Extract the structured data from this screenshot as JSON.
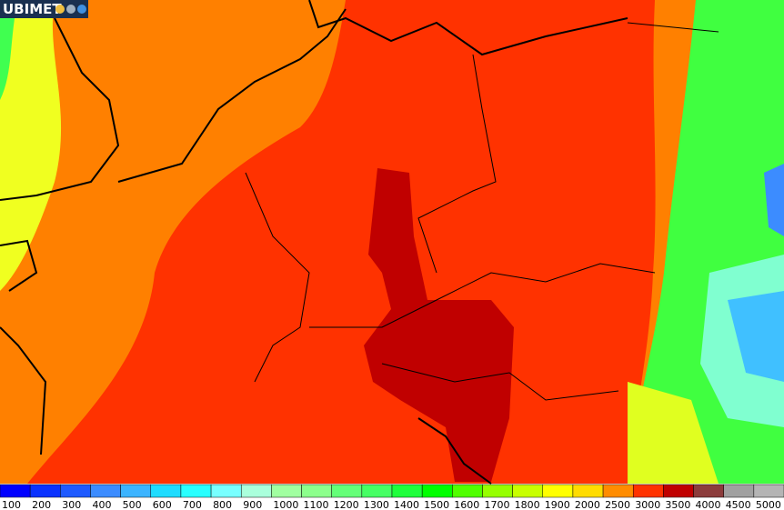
{
  "header": {
    "logo": "UBIMET"
  },
  "legend": {
    "labels": [
      "100",
      "200",
      "300",
      "400",
      "500",
      "600",
      "700",
      "800",
      "900",
      "1000",
      "1100",
      "1200",
      "1300",
      "1400",
      "1500",
      "1600",
      "1700",
      "1800",
      "1900",
      "2000",
      "2500",
      "3000",
      "3500",
      "4000",
      "4500",
      "5000"
    ],
    "colors": [
      "#0000ff",
      "#0a32ff",
      "#1e5aff",
      "#3c8cff",
      "#3cb4ff",
      "#1edcff",
      "#28ffff",
      "#78ffff",
      "#aaffdc",
      "#a0ffa0",
      "#8cff8c",
      "#64ff78",
      "#46ff64",
      "#1eff3c",
      "#00ff00",
      "#50ff00",
      "#96ff00",
      "#c8ff00",
      "#ffff00",
      "#ffdc00",
      "#ff8c00",
      "#ff3200",
      "#c00000",
      "#8c3c3c",
      "#a0a0a0",
      "#b4b4b4"
    ]
  }
}
